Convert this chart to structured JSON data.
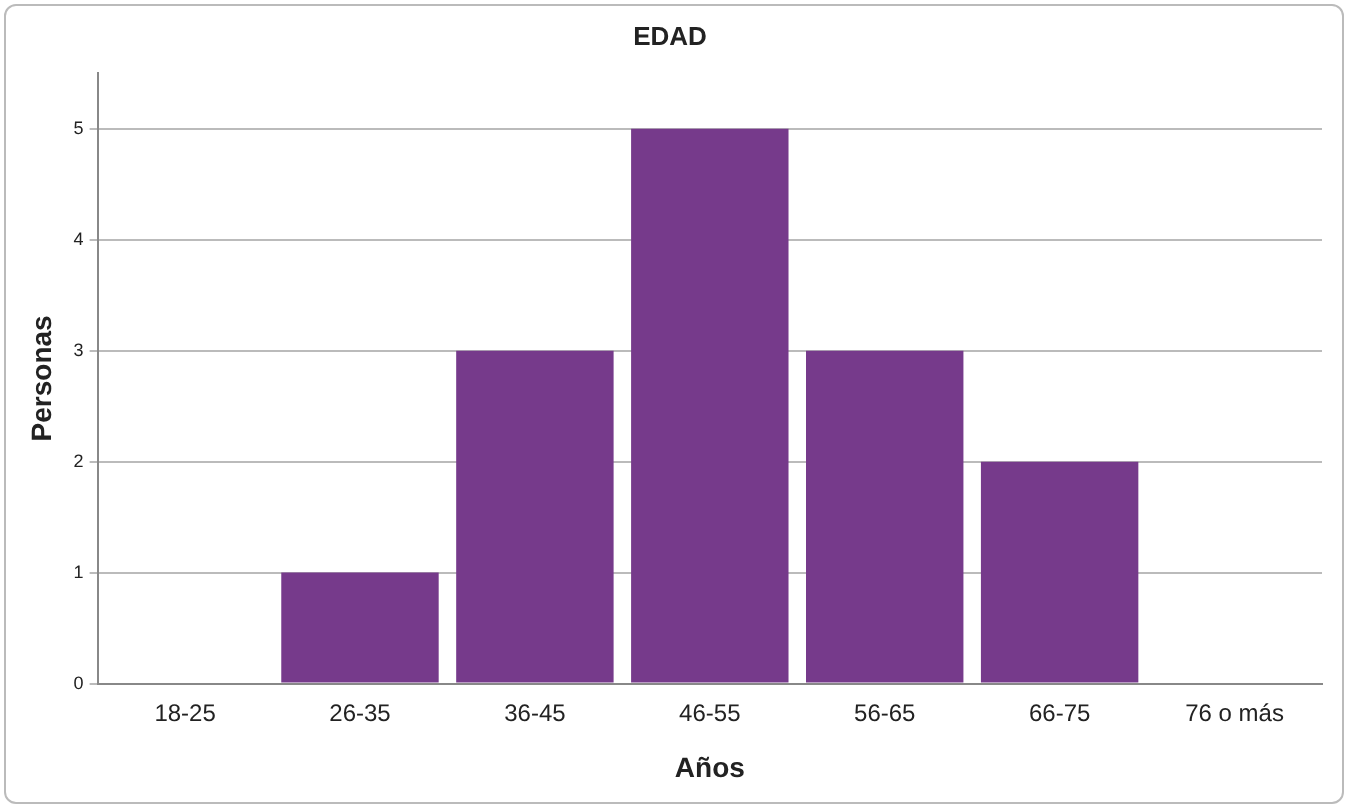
{
  "chart_data": {
    "type": "bar",
    "title": "EDAD",
    "xlabel": "Años",
    "ylabel": "Personas",
    "categories": [
      "18-25",
      "26-35",
      "36-45",
      "46-55",
      "56-65",
      "66-75",
      "76 o más"
    ],
    "values": [
      0,
      1,
      3,
      5,
      3,
      2,
      0
    ],
    "color": "#763a8b",
    "ylim": [
      0,
      5.5
    ],
    "yticks": [
      0,
      1,
      2,
      3,
      4,
      5
    ],
    "grid": "y",
    "legend": false
  }
}
